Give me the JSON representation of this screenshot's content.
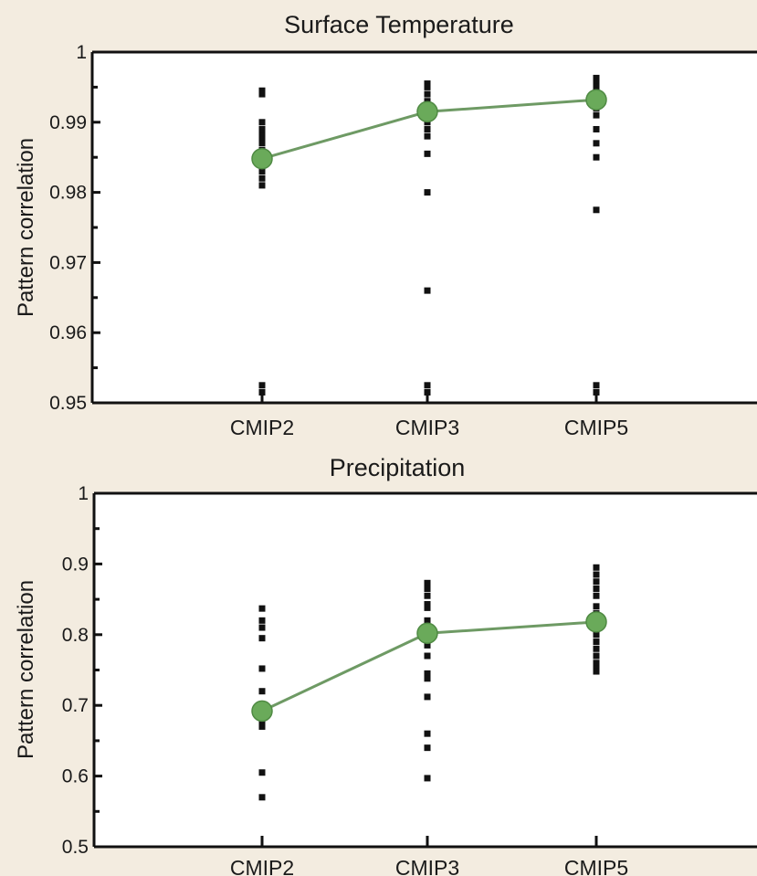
{
  "chart_data": [
    {
      "type": "scatter",
      "title": "Surface Temperature",
      "ylabel": "Pattern correlation",
      "xlabel": "",
      "categories": [
        "CMIP2",
        "CMIP3",
        "CMIP5"
      ],
      "ylim": [
        0.95,
        1
      ],
      "yticks": [
        "0.95",
        "0.96",
        "0.97",
        "0.98",
        "0.99",
        "1"
      ],
      "grid": false,
      "models": [
        [
          0.9945,
          0.994,
          0.99,
          0.989,
          0.9885,
          0.988,
          0.9875,
          0.987,
          0.986,
          0.985,
          0.984,
          0.983,
          0.982,
          0.981,
          0.9525,
          0.9515
        ],
        [
          0.9955,
          0.995,
          0.994,
          0.993,
          0.992,
          0.991,
          0.99,
          0.989,
          0.988,
          0.9855,
          0.98,
          0.966,
          0.9525,
          0.9515
        ],
        [
          0.9963,
          0.9958,
          0.995,
          0.994,
          0.993,
          0.992,
          0.991,
          0.989,
          0.987,
          0.985,
          0.9775,
          0.9525,
          0.9515
        ]
      ],
      "ensemble_mean": [
        0.9848,
        0.9915,
        0.9932
      ],
      "mean_color": "#6aaa5a",
      "line_color": "#6e9a64",
      "point_color": "#111111"
    },
    {
      "type": "scatter",
      "title": "Precipitation",
      "ylabel": "Pattern correlation",
      "xlabel": "",
      "categories": [
        "CMIP2",
        "CMIP3",
        "CMIP5"
      ],
      "ylim": [
        0.5,
        1
      ],
      "yticks": [
        "0.5",
        "0.6",
        "0.7",
        "0.8",
        "0.9",
        "1"
      ],
      "grid": false,
      "models": [
        [
          0.837,
          0.82,
          0.81,
          0.795,
          0.752,
          0.72,
          0.7,
          0.69,
          0.68,
          0.675,
          0.67,
          0.605,
          0.57
        ],
        [
          0.873,
          0.865,
          0.855,
          0.843,
          0.838,
          0.82,
          0.8,
          0.785,
          0.77,
          0.745,
          0.738,
          0.712,
          0.66,
          0.64,
          0.597
        ],
        [
          0.895,
          0.885,
          0.875,
          0.865,
          0.855,
          0.84,
          0.83,
          0.82,
          0.81,
          0.8,
          0.79,
          0.78,
          0.77,
          0.76,
          0.752,
          0.748
        ]
      ],
      "ensemble_mean": [
        0.692,
        0.802,
        0.818
      ],
      "mean_color": "#6aaa5a",
      "line_color": "#6e9a64",
      "point_color": "#111111"
    }
  ]
}
